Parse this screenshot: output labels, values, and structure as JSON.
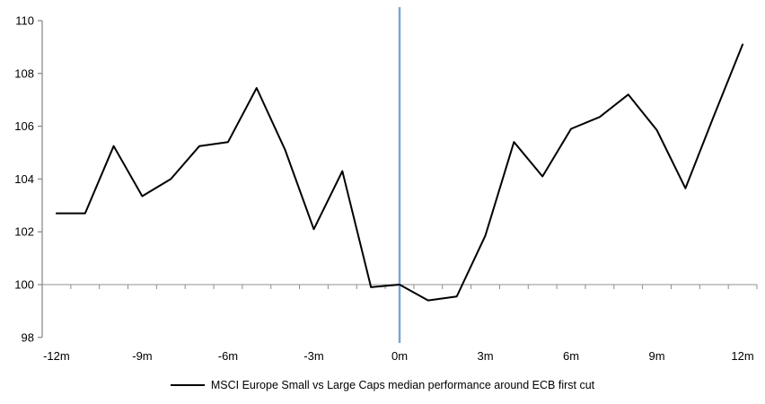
{
  "chart_data": {
    "type": "line",
    "title": "",
    "xlabel": "",
    "ylabel": "",
    "x_months": [
      -12,
      -11,
      -10,
      -9,
      -8,
      -7,
      -6,
      -5,
      -4,
      -3,
      -2,
      -1,
      0,
      1,
      2,
      3,
      4,
      5,
      6,
      7,
      8,
      9,
      10,
      11,
      12
    ],
    "series": [
      {
        "name": "MSCI Europe Small vs Large Caps median performance around ECB first cut",
        "color": "#000000",
        "values": [
          102.7,
          102.7,
          105.25,
          103.35,
          104.0,
          105.25,
          105.4,
          107.45,
          105.1,
          102.1,
          104.3,
          99.9,
          100.0,
          99.4,
          99.55,
          101.85,
          105.4,
          104.1,
          105.9,
          106.35,
          107.2,
          105.85,
          103.65,
          106.4,
          109.1
        ]
      }
    ],
    "ylim": [
      98,
      110
    ],
    "y_ticks": [
      98,
      100,
      102,
      104,
      106,
      108,
      110
    ],
    "x_tick_months": [
      -12,
      -9,
      -6,
      -3,
      0,
      3,
      6,
      9,
      12
    ],
    "x_tick_labels": [
      "-12m",
      "-9m",
      "-6m",
      "-3m",
      "0m",
      "3m",
      "6m",
      "9m",
      "12m"
    ],
    "grid": "baseline-only",
    "baseline_value": 100,
    "event_line_month": 0,
    "legend_position": "bottom-center",
    "colors": {
      "series_line": "#000000",
      "event_line": "#7CA6D4",
      "axis": "#8C8C8C",
      "baseline": "#A6A6A6",
      "text": "#000000",
      "background": "#FFFFFF"
    }
  },
  "legend": {
    "label": "MSCI Europe Small vs Large Caps median performance around ECB first cut"
  }
}
